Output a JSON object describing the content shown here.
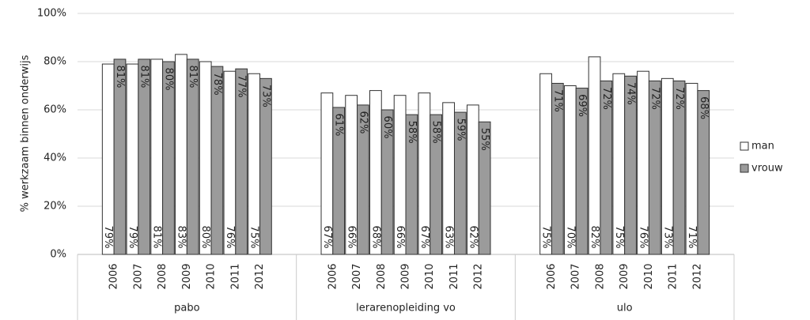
{
  "chart_data": {
    "type": "grouped-bar",
    "y_label": "% werkzaam binnen onderwijs",
    "groups": [
      {
        "name": "pabo",
        "categories": [
          "2006",
          "2007",
          "2008",
          "2009",
          "2010",
          "2011",
          "2012"
        ]
      },
      {
        "name": "lerarenopleiding vo",
        "categories": [
          "2006",
          "2007",
          "2008",
          "2009",
          "2010",
          "2011",
          "2012"
        ]
      },
      {
        "name": "ulo",
        "categories": [
          "2006",
          "2007",
          "2008",
          "2009",
          "2010",
          "2011",
          "2012"
        ]
      }
    ],
    "series": [
      {
        "name": "man",
        "color": "#ffffff",
        "values": [
          79,
          79,
          81,
          83,
          80,
          76,
          75,
          67,
          66,
          68,
          66,
          67,
          63,
          62,
          75,
          70,
          82,
          75,
          76,
          73,
          71
        ],
        "value_labels": [
          "79%",
          "79%",
          "81%",
          "83%",
          "80%",
          "76%",
          "75%",
          "67%",
          "66%",
          "68%",
          "66%",
          "67%",
          "63%",
          "62%",
          "75%",
          "70%",
          "82%",
          "75%",
          "76%",
          "73%",
          "71%"
        ]
      },
      {
        "name": "vrouw",
        "color": "#9b9b9b",
        "values": [
          81,
          81,
          80,
          81,
          78,
          77,
          73,
          61,
          62,
          60,
          58,
          58,
          59,
          55,
          71,
          69,
          72,
          74,
          72,
          72,
          68
        ],
        "value_labels": [
          "81%",
          "81%",
          "80%",
          "81%",
          "78%",
          "77%",
          "73%",
          "61%",
          "62%",
          "60%",
          "58%",
          "58%",
          "59%",
          "55%",
          "71%",
          "69%",
          "72%",
          "74%",
          "72%",
          "72%",
          "68%"
        ]
      }
    ],
    "ylim": [
      0,
      100
    ],
    "yticks": [
      {
        "value": 0,
        "label": "0%"
      },
      {
        "value": 20,
        "label": "20%"
      },
      {
        "value": 40,
        "label": "40%"
      },
      {
        "value": 60,
        "label": "60%"
      },
      {
        "value": 80,
        "label": "80%"
      },
      {
        "value": 100,
        "label": "100%"
      }
    ],
    "grid": true,
    "legend": "right"
  }
}
